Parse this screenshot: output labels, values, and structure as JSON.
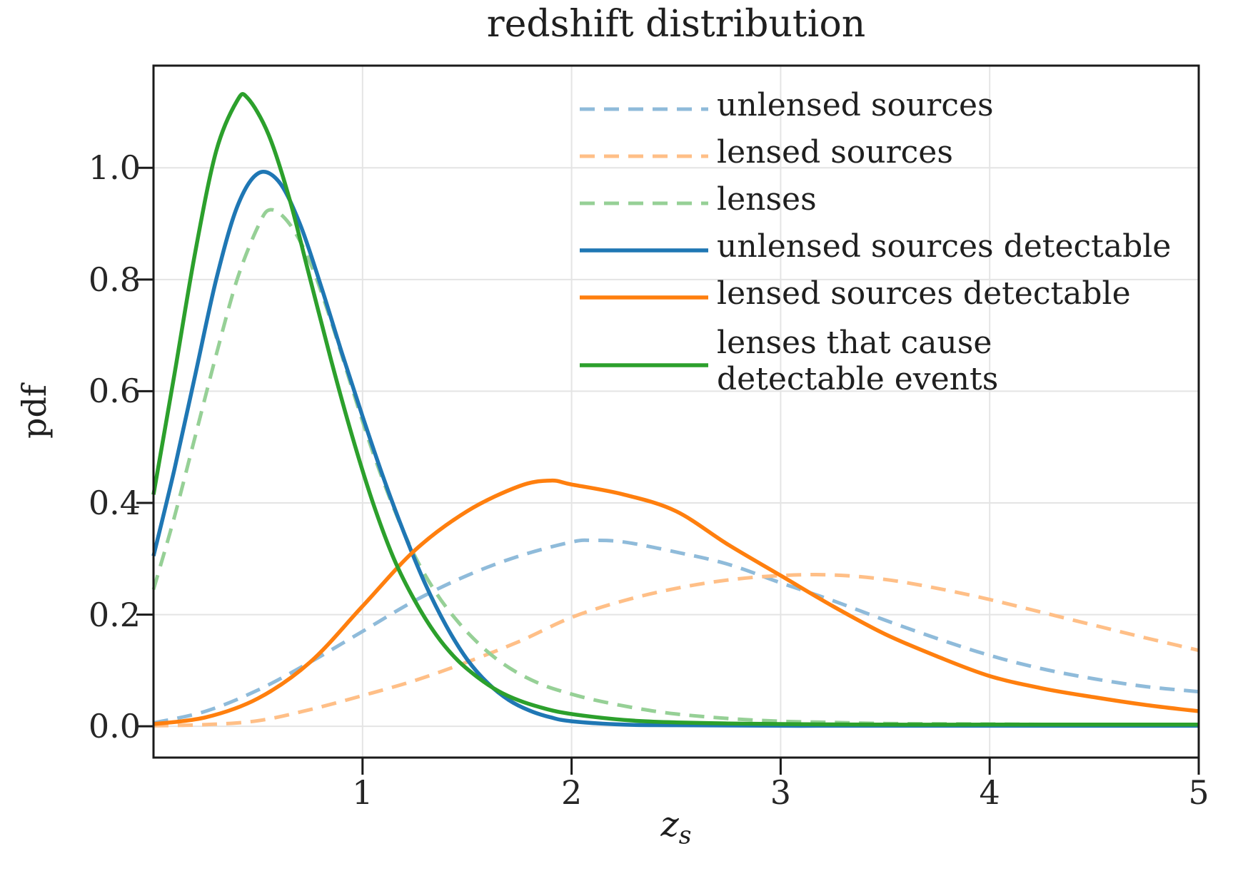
{
  "title": "redshift distribution",
  "axes": {
    "xlabel_main": "z",
    "xlabel_sub": "s",
    "ylabel": "pdf",
    "x_ticks": [
      {
        "value": 1,
        "label": "1"
      },
      {
        "value": 2,
        "label": "2"
      },
      {
        "value": 3,
        "label": "3"
      },
      {
        "value": 4,
        "label": "4"
      },
      {
        "value": 5,
        "label": "5"
      }
    ],
    "y_ticks": [
      {
        "value": 0.0,
        "label": "0.0"
      },
      {
        "value": 0.2,
        "label": "0.2"
      },
      {
        "value": 0.4,
        "label": "0.4"
      },
      {
        "value": 0.6,
        "label": "0.6"
      },
      {
        "value": 0.8,
        "label": "0.8"
      },
      {
        "value": 1.0,
        "label": "1.0"
      }
    ],
    "grid": true,
    "grid_color": "#e4e4e4",
    "spine_color": "#1a1a1a",
    "text_color": "#262626"
  },
  "colors": {
    "solid_blue": "#1f77b4",
    "solid_orange": "#ff7f0e",
    "solid_green": "#2ca02c",
    "dashed_blue": "#8fbbda",
    "dashed_orange": "#ffbf87",
    "dashed_green": "#96d096"
  },
  "legend": {
    "items": [
      {
        "label_lines": [
          "unlensed sources"
        ],
        "color": "#8fbbda",
        "linestyle": "dashed"
      },
      {
        "label_lines": [
          "lensed sources"
        ],
        "color": "#ffbf87",
        "linestyle": "dashed"
      },
      {
        "label_lines": [
          "lenses"
        ],
        "color": "#96d096",
        "linestyle": "dashed"
      },
      {
        "label_lines": [
          "unlensed sources detectable"
        ],
        "color": "#1f77b4",
        "linestyle": "solid"
      },
      {
        "label_lines": [
          "lensed sources detectable"
        ],
        "color": "#ff7f0e",
        "linestyle": "solid"
      },
      {
        "label_lines": [
          "lenses that cause",
          " detectable events"
        ],
        "color": "#2ca02c",
        "linestyle": "solid"
      }
    ],
    "position": "upper right",
    "frame": false
  },
  "chart_data": {
    "type": "line",
    "title": "redshift distribution",
    "xlabel": "z_s",
    "ylabel": "pdf",
    "xlim": [
      0,
      5
    ],
    "ylim": [
      -0.056,
      1.183
    ],
    "grid": true,
    "series": [
      {
        "name": "unlensed sources",
        "color": "#8fbbda",
        "linestyle": "dashed",
        "peak": {
          "x": 2.05,
          "y": 0.333
        },
        "points": [
          [
            0,
            0.006
          ],
          [
            0.25,
            0.027
          ],
          [
            0.5,
            0.065
          ],
          [
            0.75,
            0.115
          ],
          [
            1,
            0.17
          ],
          [
            1.25,
            0.225
          ],
          [
            1.5,
            0.27
          ],
          [
            1.75,
            0.305
          ],
          [
            2,
            0.33
          ],
          [
            2.1,
            0.333
          ],
          [
            2.25,
            0.33
          ],
          [
            2.5,
            0.312
          ],
          [
            2.75,
            0.29
          ],
          [
            3,
            0.257
          ],
          [
            3.25,
            0.225
          ],
          [
            3.5,
            0.19
          ],
          [
            3.75,
            0.157
          ],
          [
            4,
            0.127
          ],
          [
            4.25,
            0.103
          ],
          [
            4.5,
            0.085
          ],
          [
            4.75,
            0.071
          ],
          [
            5,
            0.062
          ]
        ]
      },
      {
        "name": "lensed sources",
        "color": "#ffbf87",
        "linestyle": "dashed",
        "peak": {
          "x": 3.15,
          "y": 0.271
        },
        "points": [
          [
            0,
            0.001
          ],
          [
            0.25,
            0.003
          ],
          [
            0.5,
            0.01
          ],
          [
            0.75,
            0.03
          ],
          [
            1,
            0.055
          ],
          [
            1.25,
            0.082
          ],
          [
            1.5,
            0.115
          ],
          [
            1.75,
            0.152
          ],
          [
            2,
            0.195
          ],
          [
            2.25,
            0.225
          ],
          [
            2.5,
            0.247
          ],
          [
            2.75,
            0.262
          ],
          [
            3,
            0.27
          ],
          [
            3.25,
            0.271
          ],
          [
            3.5,
            0.263
          ],
          [
            3.75,
            0.247
          ],
          [
            4,
            0.227
          ],
          [
            4.25,
            0.204
          ],
          [
            4.5,
            0.181
          ],
          [
            4.75,
            0.158
          ],
          [
            5,
            0.136
          ]
        ]
      },
      {
        "name": "lenses",
        "color": "#96d096",
        "linestyle": "dashed",
        "peak": {
          "x": 0.56,
          "y": 0.925
        },
        "points": [
          [
            0,
            0.245
          ],
          [
            0.1,
            0.375
          ],
          [
            0.2,
            0.52
          ],
          [
            0.3,
            0.665
          ],
          [
            0.4,
            0.8
          ],
          [
            0.5,
            0.895
          ],
          [
            0.56,
            0.925
          ],
          [
            0.65,
            0.9
          ],
          [
            0.75,
            0.83
          ],
          [
            0.85,
            0.725
          ],
          [
            0.95,
            0.605
          ],
          [
            1.05,
            0.49
          ],
          [
            1.15,
            0.39
          ],
          [
            1.25,
            0.305
          ],
          [
            1.35,
            0.24
          ],
          [
            1.45,
            0.19
          ],
          [
            1.55,
            0.15
          ],
          [
            1.65,
            0.118
          ],
          [
            1.75,
            0.094
          ],
          [
            1.85,
            0.076
          ],
          [
            1.95,
            0.063
          ],
          [
            2.1,
            0.048
          ],
          [
            2.3,
            0.033
          ],
          [
            2.5,
            0.022
          ],
          [
            2.75,
            0.014
          ],
          [
            3,
            0.009
          ],
          [
            3.25,
            0.007
          ],
          [
            3.5,
            0.005
          ],
          [
            4,
            0.004
          ],
          [
            4.5,
            0.003
          ],
          [
            5,
            0.003
          ]
        ]
      },
      {
        "name": "unlensed sources detectable",
        "color": "#1f77b4",
        "linestyle": "solid",
        "peak": {
          "x": 0.5,
          "y": 0.99
        },
        "points": [
          [
            0,
            0.305
          ],
          [
            0.1,
            0.46
          ],
          [
            0.2,
            0.63
          ],
          [
            0.3,
            0.8
          ],
          [
            0.4,
            0.93
          ],
          [
            0.5,
            0.99
          ],
          [
            0.6,
            0.975
          ],
          [
            0.7,
            0.9
          ],
          [
            0.8,
            0.79
          ],
          [
            0.9,
            0.67
          ],
          [
            1,
            0.555
          ],
          [
            1.1,
            0.445
          ],
          [
            1.2,
            0.345
          ],
          [
            1.3,
            0.255
          ],
          [
            1.4,
            0.18
          ],
          [
            1.5,
            0.12
          ],
          [
            1.6,
            0.077
          ],
          [
            1.7,
            0.047
          ],
          [
            1.8,
            0.028
          ],
          [
            1.9,
            0.016
          ],
          [
            2,
            0.009
          ],
          [
            2.25,
            0.003
          ],
          [
            2.5,
            0.002
          ],
          [
            3,
            0.001
          ],
          [
            3.5,
            0.001
          ],
          [
            4,
            0.001
          ],
          [
            4.5,
            0.001
          ],
          [
            5,
            0.001
          ]
        ]
      },
      {
        "name": "lensed sources detectable",
        "color": "#ff7f0e",
        "linestyle": "solid",
        "peak": {
          "x": 1.9,
          "y": 0.44
        },
        "points": [
          [
            0,
            0.004
          ],
          [
            0.25,
            0.016
          ],
          [
            0.5,
            0.05
          ],
          [
            0.75,
            0.115
          ],
          [
            1,
            0.215
          ],
          [
            1.25,
            0.315
          ],
          [
            1.5,
            0.385
          ],
          [
            1.75,
            0.43
          ],
          [
            1.9,
            0.44
          ],
          [
            2,
            0.433
          ],
          [
            2.25,
            0.415
          ],
          [
            2.5,
            0.385
          ],
          [
            2.75,
            0.325
          ],
          [
            3,
            0.27
          ],
          [
            3.25,
            0.215
          ],
          [
            3.5,
            0.165
          ],
          [
            3.75,
            0.125
          ],
          [
            4,
            0.09
          ],
          [
            4.25,
            0.068
          ],
          [
            4.5,
            0.052
          ],
          [
            4.75,
            0.038
          ],
          [
            5,
            0.027
          ]
        ]
      },
      {
        "name": "lenses that cause detectable events",
        "color": "#2ca02c",
        "linestyle": "solid",
        "peak": {
          "x": 0.43,
          "y": 1.125
        },
        "points": [
          [
            0,
            0.415
          ],
          [
            0.1,
            0.63
          ],
          [
            0.2,
            0.85
          ],
          [
            0.3,
            1.03
          ],
          [
            0.4,
            1.12
          ],
          [
            0.45,
            1.125
          ],
          [
            0.55,
            1.06
          ],
          [
            0.65,
            0.945
          ],
          [
            0.75,
            0.8
          ],
          [
            0.85,
            0.655
          ],
          [
            0.95,
            0.52
          ],
          [
            1.05,
            0.4
          ],
          [
            1.15,
            0.3
          ],
          [
            1.25,
            0.225
          ],
          [
            1.35,
            0.165
          ],
          [
            1.45,
            0.12
          ],
          [
            1.55,
            0.088
          ],
          [
            1.65,
            0.063
          ],
          [
            1.75,
            0.046
          ],
          [
            1.85,
            0.034
          ],
          [
            1.95,
            0.025
          ],
          [
            2.1,
            0.017
          ],
          [
            2.3,
            0.01
          ],
          [
            2.5,
            0.007
          ],
          [
            2.75,
            0.005
          ],
          [
            3,
            0.004
          ],
          [
            3.5,
            0.003
          ],
          [
            4,
            0.003
          ],
          [
            4.5,
            0.003
          ],
          [
            5,
            0.003
          ]
        ]
      }
    ]
  }
}
